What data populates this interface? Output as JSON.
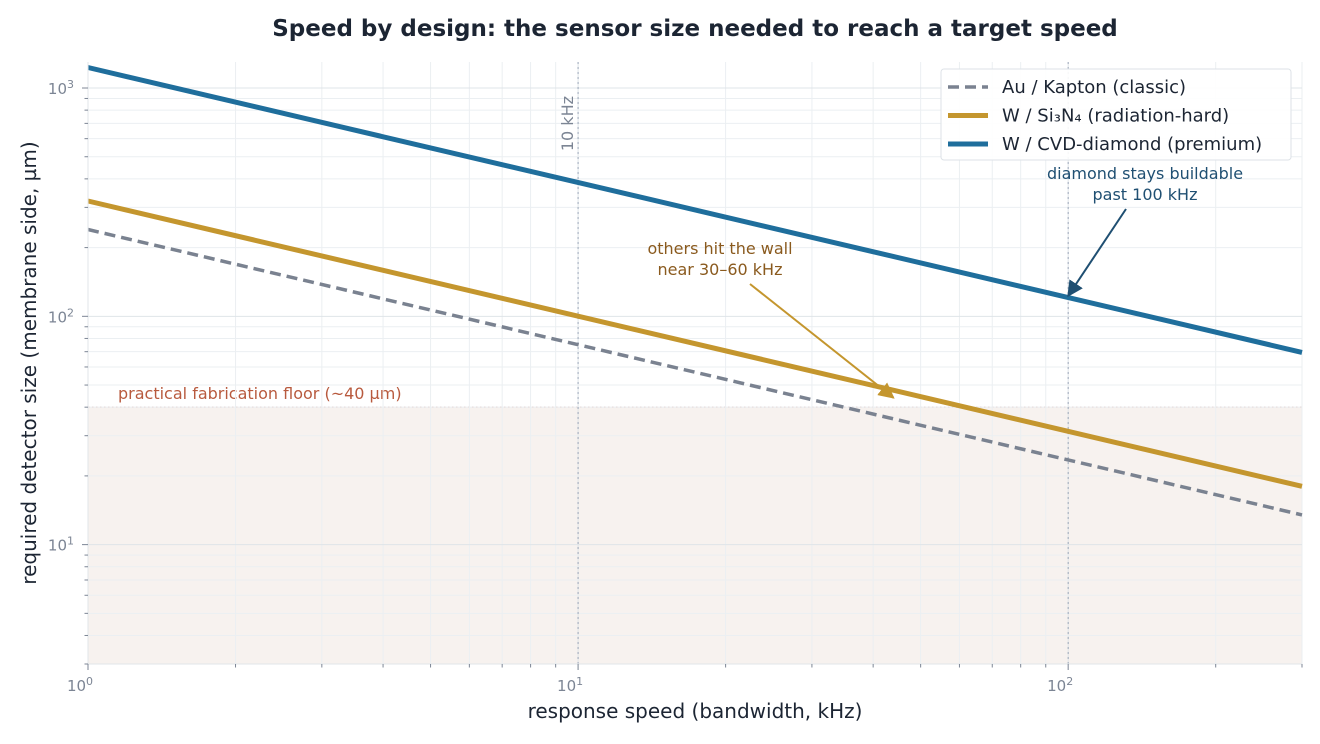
{
  "chart_data": {
    "type": "line",
    "title": "Speed by design: the sensor size needed to reach a target speed",
    "xlabel": "response speed   (bandwidth, kHz)",
    "ylabel": "required detector size   (membrane side, µm)",
    "x_scale": "log",
    "y_scale": "log",
    "xlim": [
      1,
      300
    ],
    "ylim": [
      3,
      1300
    ],
    "x_ticks": [
      {
        "value": 1,
        "base": "10",
        "exp": "0"
      },
      {
        "value": 10,
        "base": "10",
        "exp": "1"
      },
      {
        "value": 100,
        "base": "10",
        "exp": "2"
      }
    ],
    "y_ticks": [
      {
        "value": 10,
        "base": "10",
        "exp": "1"
      },
      {
        "value": 100,
        "base": "10",
        "exp": "2"
      },
      {
        "value": 1000,
        "base": "10",
        "exp": "3"
      }
    ],
    "grid": true,
    "legend_position": "top-right",
    "series": [
      {
        "name": "Au / Kapton  (classic)",
        "color": "#7a8290",
        "dash": true,
        "x": [
          1,
          300
        ],
        "y": [
          240,
          13.5
        ]
      },
      {
        "name": "W / Si₃N₄  (radiation-hard)",
        "color": "#c4962e",
        "dash": false,
        "x": [
          1,
          300
        ],
        "y": [
          320,
          18
        ]
      },
      {
        "name": "W / CVD-diamond  (premium)",
        "color": "#1f6e9c",
        "dash": false,
        "x": [
          1,
          300
        ],
        "y": [
          1230,
          69.5
        ]
      }
    ],
    "floor": {
      "value": 40,
      "label": "practical fabrication floor  (~40 µm)",
      "color": "#b85a3e"
    },
    "reference_lines": [
      {
        "x": 10,
        "label": "10 kHz"
      },
      {
        "x": 100,
        "label": ""
      }
    ],
    "annotations": [
      {
        "lines": [
          "others hit the wall",
          "near 30–60 kHz"
        ],
        "color": "#8a5a1e",
        "arrow_color": "#c4962e",
        "target": [
          44,
          44
        ]
      },
      {
        "lines": [
          "diamond stays buildable",
          "past 100 kHz"
        ],
        "color": "#1f4f72",
        "arrow_color": "#1f4f72",
        "target": [
          100,
          123
        ]
      }
    ]
  }
}
